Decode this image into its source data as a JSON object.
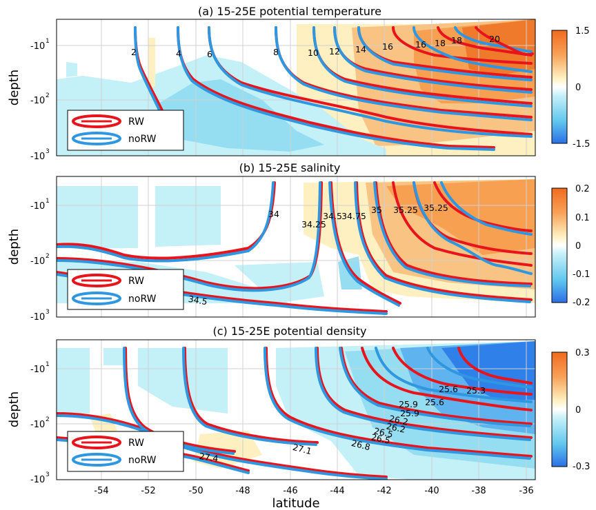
{
  "chart_data": {
    "type": "contour",
    "xlabel": "latitude",
    "x_ticks": [
      "-54",
      "-52",
      "-50",
      "-48",
      "-46",
      "-44",
      "-42",
      "-40",
      "-38",
      "-36"
    ],
    "xlim": [
      -55,
      -35
    ],
    "colors": {
      "rw_line": "#e8141b",
      "norw_line": "#2f96e0",
      "warm_strong": "#f0641e",
      "warm_mid": "#f9a95e",
      "warm_light": "#fde7a8",
      "cool_light": "#c4f0f8",
      "cool_mid": "#7fd7f0",
      "cool_strong": "#2f80e8"
    },
    "legend": [
      "RW",
      "noRW"
    ],
    "panels": [
      {
        "title": "(a) 15-25E potential temperature",
        "ylabel": "depth",
        "y_scale": "log (reversed)",
        "y_ticks": [
          "-10",
          "-10",
          "-10"
        ],
        "y_exps": [
          "1",
          "2",
          "3"
        ],
        "colorbar": {
          "ticks": [
            "1.5",
            "0",
            "-1.5"
          ],
          "range": [
            -1.5,
            1.5
          ]
        },
        "contour_labels": [
          "2",
          "4",
          "6",
          "8",
          "10",
          "12",
          "14",
          "16",
          "16",
          "18",
          "18",
          "20"
        ]
      },
      {
        "title": "(b) 15-25E salinity",
        "ylabel": "depth",
        "y_scale": "log (reversed)",
        "y_ticks": [
          "-10",
          "-10",
          "-10"
        ],
        "y_exps": [
          "1",
          "2",
          "3"
        ],
        "colorbar": {
          "ticks": [
            "0.2",
            "0.1",
            "0",
            "-0.1",
            "-0.2"
          ],
          "range": [
            -0.2,
            0.2
          ]
        },
        "contour_labels": [
          "34",
          "34.25",
          "34.5",
          "34.75",
          "35",
          "35.25",
          "35.25",
          "34.5"
        ]
      },
      {
        "title": "(c) 15-25E potential density",
        "ylabel": "depth",
        "y_scale": "log (reversed)",
        "y_ticks": [
          "-10",
          "-10",
          "-10"
        ],
        "y_exps": [
          "1",
          "2",
          "3"
        ],
        "colorbar": {
          "ticks": [
            "0.3",
            "0",
            "-0.3"
          ],
          "range": [
            -0.3,
            0.3
          ]
        },
        "contour_labels": [
          "25.6",
          "25.3",
          "25.6",
          "25.9",
          "25.9",
          "26.2",
          "26.2",
          "26.5",
          "26.5",
          "26.8",
          "27.1",
          "27.4"
        ]
      }
    ]
  }
}
